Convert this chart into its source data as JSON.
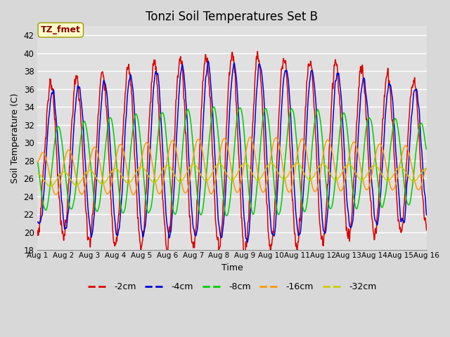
{
  "title": "Tonzi Soil Temperatures Set B",
  "xlabel": "Time",
  "ylabel": "Soil Temperature (C)",
  "ylim": [
    18,
    43
  ],
  "yticks": [
    18,
    20,
    22,
    24,
    26,
    28,
    30,
    32,
    34,
    36,
    38,
    40,
    42
  ],
  "n_days": 15,
  "points_per_day": 96,
  "series_order": [
    "-2cm",
    "-4cm",
    "-8cm",
    "-16cm",
    "-32cm"
  ],
  "series": {
    "-2cm": {
      "color": "#dd0000",
      "base_amp": 8.0,
      "base_mean": 28.0,
      "phase_lag": 0.0,
      "smoothing": 1
    },
    "-4cm": {
      "color": "#0000dd",
      "base_amp": 7.2,
      "base_mean": 28.0,
      "phase_lag": 0.08,
      "smoothing": 2
    },
    "-8cm": {
      "color": "#00cc00",
      "base_amp": 4.5,
      "base_mean": 27.0,
      "phase_lag": 0.3,
      "smoothing": 4
    },
    "-16cm": {
      "color": "#ff9900",
      "base_amp": 2.5,
      "base_mean": 26.5,
      "phase_lag": 0.7,
      "smoothing": 8
    },
    "-32cm": {
      "color": "#cccc00",
      "base_amp": 1.0,
      "base_mean": 25.8,
      "phase_lag": 1.5,
      "smoothing": 16
    }
  },
  "annotation_text": "TZ_fmet",
  "bg_color": "#e0e0e0",
  "grid_color": "#ffffff",
  "title_fontsize": 12,
  "axis_fontsize": 9,
  "legend_fontsize": 9,
  "fig_width": 6.4,
  "fig_height": 4.8,
  "dpi": 100
}
